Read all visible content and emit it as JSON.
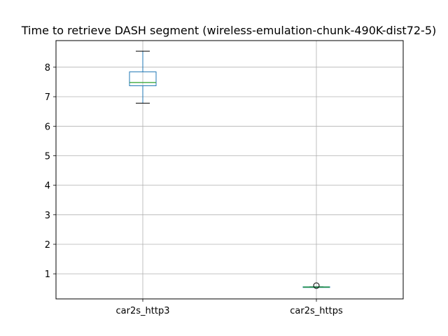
{
  "chart_data": {
    "type": "box",
    "title": "Time to retrieve DASH segment (wireless-emulation-chunk-490K-dist72-5)",
    "xlabel": "",
    "ylabel": "",
    "categories": [
      "car2s_http3",
      "car2s_https"
    ],
    "boxes": [
      {
        "name": "car2s_http3",
        "whisker_low": 6.78,
        "q1": 7.37,
        "median": 7.48,
        "q3": 7.84,
        "whisker_high": 8.54,
        "outliers": []
      },
      {
        "name": "car2s_https",
        "whisker_low": 0.55,
        "q1": 0.55,
        "median": 0.55,
        "q3": 0.56,
        "whisker_high": 0.56,
        "outliers": [
          0.6
        ]
      }
    ],
    "ylim": [
      0.15,
      8.9
    ],
    "yticks": [
      1,
      2,
      3,
      4,
      5,
      6,
      7,
      8
    ],
    "grid": true,
    "colors": {
      "box": "#1f77b4",
      "median": "#2ca02c",
      "whisker": "#000000",
      "grid": "#b0b0b0"
    }
  }
}
